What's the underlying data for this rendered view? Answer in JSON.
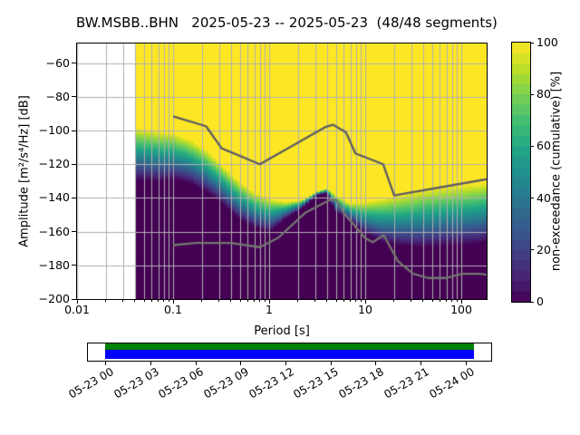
{
  "chart_data": {
    "type": "heatmap",
    "title": "BW.MSBB..BHN   2025-05-23 -- 2025-05-23  (48/48 segments)",
    "xlabel": "Period [s]",
    "ylabel": "Amplitude [m²/s⁴/Hz] [dB]",
    "xscale": "log",
    "xlim": [
      0.01,
      184
    ],
    "ylim": [
      -200,
      -48.3
    ],
    "grid": true,
    "x_ticks": [
      0.01,
      0.1,
      1,
      10,
      100
    ],
    "x_tick_labels": [
      "0.01",
      "0.1",
      "1",
      "10",
      "100"
    ],
    "y_ticks": [
      -60,
      -80,
      -100,
      -120,
      -140,
      -160,
      -180,
      -200
    ],
    "y_tick_labels": [
      "−60",
      "−80",
      "−100",
      "−120",
      "−140",
      "−160",
      "−180",
      "−200"
    ],
    "colormap": "viridis",
    "colorbar": {
      "label": "non-exceedance (cumulative) [%]",
      "ticks": [
        0,
        20,
        40,
        60,
        80,
        100
      ],
      "tick_labels": [
        "0",
        "20",
        "40",
        "60",
        "80",
        "100"
      ],
      "range": [
        0,
        100
      ],
      "segments": 25
    },
    "data_period_start": 0.041,
    "cumulative_band": {
      "comment": "per-period dB level where cumulative non-exceedance leaves 0% (db_0pct) and reaches 100% (db_100pct)",
      "periods": [
        0.041,
        0.07,
        0.1,
        0.15,
        0.22,
        0.32,
        0.47,
        0.68,
        1.0,
        1.5,
        2.2,
        3.2,
        4.0,
        5.0,
        7.0,
        10,
        15,
        22,
        32,
        47,
        68,
        100,
        150,
        184
      ],
      "db_0pct": [
        -129,
        -130,
        -129,
        -131,
        -136,
        -143,
        -152,
        -157,
        -160,
        -152,
        -146,
        -138,
        -137,
        -148,
        -153,
        -161,
        -166,
        -168,
        -169,
        -169,
        -168,
        -168,
        -167,
        -166
      ],
      "db_100pct": [
        -98,
        -100,
        -101,
        -105,
        -111,
        -120,
        -129,
        -136,
        -140,
        -142,
        -141,
        -136,
        -134,
        -138,
        -143,
        -142,
        -140,
        -138,
        -136,
        -134,
        -133,
        -132,
        -131,
        -130
      ]
    },
    "noise_models": {
      "nhnm": [
        [
          0.1,
          -91.5
        ],
        [
          0.22,
          -97.4
        ],
        [
          0.32,
          -110.5
        ],
        [
          0.8,
          -120.0
        ],
        [
          3.8,
          -98.0
        ],
        [
          4.6,
          -96.5
        ],
        [
          6.3,
          -101.0
        ],
        [
          7.9,
          -113.5
        ],
        [
          15.4,
          -120.0
        ],
        [
          20.0,
          -138.5
        ],
        [
          354.8,
          -126.0
        ]
      ],
      "nlnm": [
        [
          0.1,
          -168.0
        ],
        [
          0.17,
          -166.7
        ],
        [
          0.4,
          -166.7
        ],
        [
          0.8,
          -169.2
        ],
        [
          1.24,
          -163.7
        ],
        [
          2.4,
          -148.6
        ],
        [
          4.3,
          -141.1
        ],
        [
          5.0,
          -141.1
        ],
        [
          6.0,
          -149.0
        ],
        [
          10.0,
          -163.8
        ],
        [
          12.0,
          -166.2
        ],
        [
          15.6,
          -162.1
        ],
        [
          21.9,
          -177.5
        ],
        [
          31.6,
          -185.0
        ],
        [
          45.0,
          -187.5
        ],
        [
          70.0,
          -187.5
        ],
        [
          101.0,
          -185.0
        ],
        [
          154.0,
          -185.0
        ],
        [
          328.0,
          -187.5
        ]
      ]
    },
    "colors": {
      "nhnm_line": "#5c5c64",
      "nlnm_line": "#73776f",
      "grid_line": "#b0b0b0",
      "no_data": "#ffffff"
    }
  },
  "timeline": {
    "tick_labels": [
      "05-23 00",
      "05-23 03",
      "05-23 06",
      "05-23 09",
      "05-23 12",
      "05-23 15",
      "05-23 18",
      "05-23 21",
      "05-24 00"
    ],
    "coverage": {
      "top_color": "#008000",
      "bottom_color": "#0000ff"
    }
  }
}
